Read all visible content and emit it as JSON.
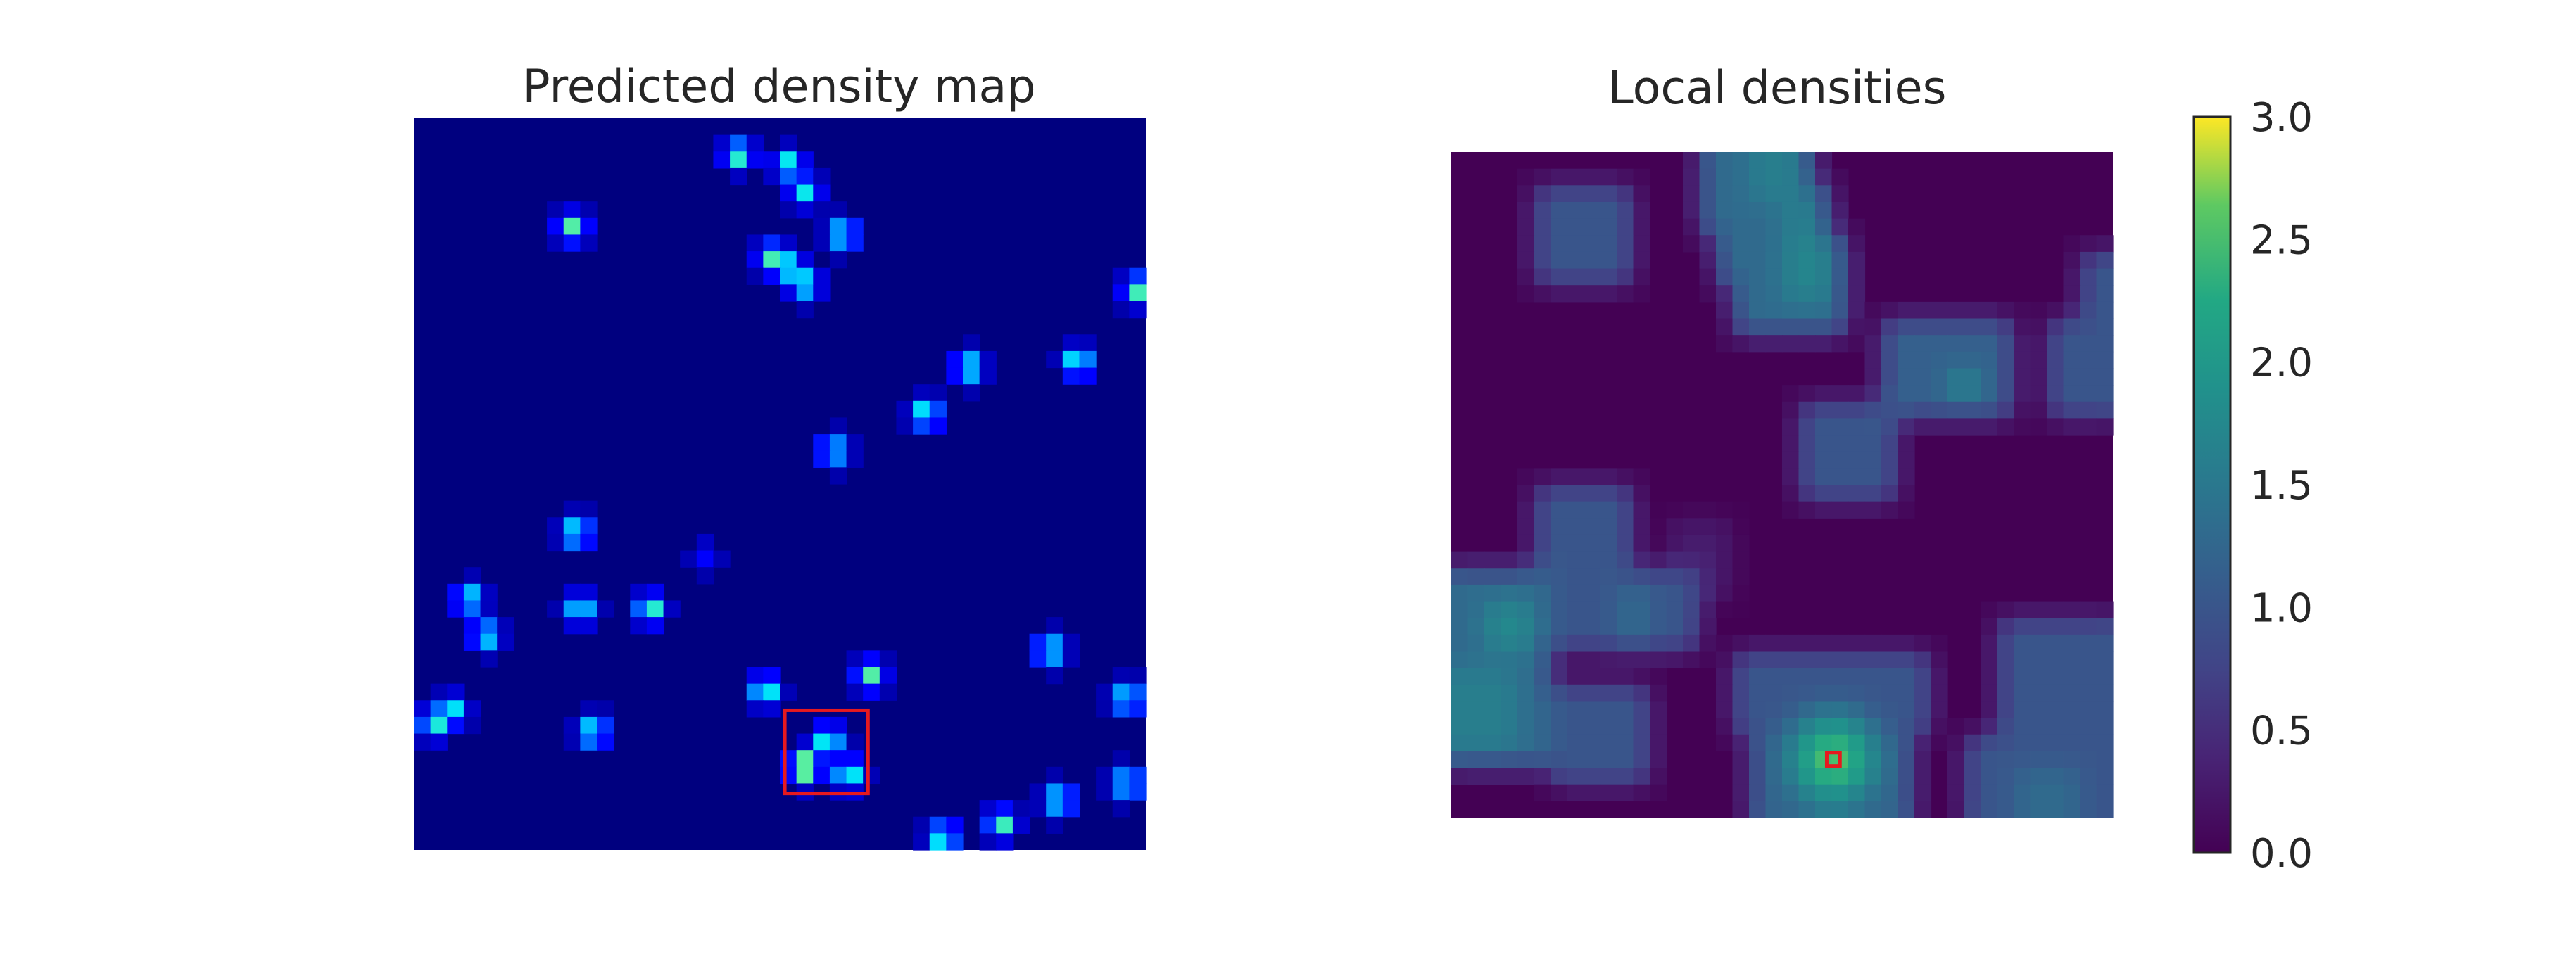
{
  "colors": {
    "jet_background": "#00007f",
    "viridis_background": "#440154",
    "highlight": "#e6191f"
  },
  "chart_data": [
    {
      "type": "heatmap",
      "title": "Predicted density map",
      "colormap": "jet",
      "axes": "off",
      "grid_size": [
        44,
        44
      ],
      "blob_value_range": [
        0,
        1
      ],
      "blobs": [
        {
          "col": 19.5,
          "row": 2.2,
          "peak": 1.0
        },
        {
          "col": 22.5,
          "row": 2.8,
          "peak": 0.9
        },
        {
          "col": 23.5,
          "row": 4.4,
          "peak": 0.8
        },
        {
          "col": 9.5,
          "row": 6.6,
          "peak": 1.0
        },
        {
          "col": 25.8,
          "row": 7.0,
          "peak": 1.0
        },
        {
          "col": 21.5,
          "row": 8.3,
          "peak": 0.9
        },
        {
          "col": 22.5,
          "row": 9.0,
          "peak": 0.8
        },
        {
          "col": 23.5,
          "row": 10.0,
          "peak": 0.9
        },
        {
          "col": 43.5,
          "row": 10.3,
          "peak": 1.0
        },
        {
          "col": 33.3,
          "row": 15.0,
          "peak": 1.0
        },
        {
          "col": 39.9,
          "row": 14.7,
          "peak": 1.0
        },
        {
          "col": 30.8,
          "row": 17.8,
          "peak": 1.0
        },
        {
          "col": 25.2,
          "row": 20.0,
          "peak": 0.9
        },
        {
          "col": 9.8,
          "row": 24.9,
          "peak": 1.0
        },
        {
          "col": 17.5,
          "row": 26.3,
          "peak": 0.2
        },
        {
          "col": 3.3,
          "row": 28.9,
          "peak": 0.9
        },
        {
          "col": 4.3,
          "row": 31.1,
          "peak": 0.9
        },
        {
          "col": 10.0,
          "row": 29.5,
          "peak": 0.9
        },
        {
          "col": 14.2,
          "row": 29.5,
          "peak": 1.0
        },
        {
          "col": 38.2,
          "row": 32.0,
          "peak": 1.0
        },
        {
          "col": 27.4,
          "row": 33.5,
          "peak": 1.0
        },
        {
          "col": 21.1,
          "row": 34.4,
          "peak": 1.0
        },
        {
          "col": 42.9,
          "row": 34.9,
          "peak": 1.0
        },
        {
          "col": 1.2,
          "row": 36.4,
          "peak": 0.9
        },
        {
          "col": 2.3,
          "row": 35.6,
          "peak": 0.8
        },
        {
          "col": 10.8,
          "row": 36.9,
          "peak": 1.0
        },
        {
          "col": 24.9,
          "row": 37.4,
          "peak": 1.0
        },
        {
          "col": 23.4,
          "row": 38.8,
          "peak": 0.8
        },
        {
          "col": 23.5,
          "row": 39.2,
          "peak": 0.9
        },
        {
          "col": 26.1,
          "row": 39.4,
          "peak": 1.0
        },
        {
          "col": 42.9,
          "row": 40.0,
          "peak": 1.0
        },
        {
          "col": 38.8,
          "row": 41.0,
          "peak": 1.0
        },
        {
          "col": 35.3,
          "row": 42.4,
          "peak": 1.0
        },
        {
          "col": 31.8,
          "row": 43.2,
          "peak": 1.0
        }
      ],
      "highlight_box": {
        "col_range": [
          22.3,
          27.3
        ],
        "row_range": [
          35.6,
          40.6
        ]
      }
    },
    {
      "type": "heatmap",
      "title": "Local densities",
      "colormap": "viridis",
      "axes": "off",
      "grid_size": [
        40,
        40
      ],
      "colorbar": {
        "range": [
          0.0,
          3.0
        ],
        "ticks": [
          "0.0",
          "0.5",
          "1.0",
          "1.5",
          "2.0",
          "2.5",
          "3.0"
        ]
      },
      "patches": [
        {
          "c0": 5.5,
          "c1": 10.5,
          "r0": 2.5,
          "r1": 7.5,
          "value": 1.0
        },
        {
          "c0": 15.5,
          "c1": 22.0,
          "r0": 0.0,
          "r1": 4.5,
          "value": 1.3
        },
        {
          "c0": 16.5,
          "c1": 22.5,
          "r0": 2.5,
          "r1": 7.5,
          "value": 1.3
        },
        {
          "c0": 17.5,
          "c1": 23.5,
          "r0": 5.0,
          "r1": 10.5,
          "value": 1.3
        },
        {
          "c0": 18.5,
          "c1": 21.0,
          "r0": 0.0,
          "r1": 2.5,
          "value": 1.6
        },
        {
          "c0": 20.0,
          "c1": 22.0,
          "r0": 2.0,
          "r1": 4.5,
          "value": 1.6
        },
        {
          "c0": 20.0,
          "c1": 23.0,
          "r0": 5.5,
          "r1": 8.5,
          "value": 1.7
        },
        {
          "c0": 26.5,
          "c1": 33.5,
          "r0": 10.5,
          "r1": 16.0,
          "value": 1.15
        },
        {
          "c0": 30.0,
          "c1": 31.5,
          "r0": 13.5,
          "r1": 15.0,
          "value": 1.7
        },
        {
          "c0": 21.5,
          "c1": 27.0,
          "r0": 15.5,
          "r1": 21.0,
          "value": 1.0
        },
        {
          "c0": 36.0,
          "c1": 40.0,
          "r0": 10.5,
          "r1": 15.5,
          "value": 1.0
        },
        {
          "c0": 38.5,
          "c1": 40.0,
          "r0": 6.0,
          "r1": 11.0,
          "value": 1.0
        },
        {
          "c0": 0.0,
          "c1": 5.5,
          "r0": 25.0,
          "r1": 36.5,
          "value": 1.3
        },
        {
          "c0": 0.0,
          "c1": 4.0,
          "r0": 31.0,
          "r1": 36.0,
          "value": 1.6
        },
        {
          "c0": 2.0,
          "c1": 4.5,
          "r0": 27.0,
          "r1": 30.0,
          "value": 1.75
        },
        {
          "c0": 5.5,
          "c1": 11.0,
          "r0": 20.5,
          "r1": 26.0,
          "value": 1.0
        },
        {
          "c0": 6.0,
          "c1": 15.0,
          "r0": 25.0,
          "r1": 30.0,
          "value": 1.0
        },
        {
          "c0": 10.5,
          "c1": 12.0,
          "r0": 26.0,
          "r1": 30.0,
          "value": 1.3
        },
        {
          "c0": 13.5,
          "c1": 16.5,
          "r0": 22.5,
          "r1": 27.0,
          "value": 0.3
        },
        {
          "c0": 6.5,
          "c1": 12.0,
          "r0": 32.5,
          "r1": 37.5,
          "value": 1.0
        },
        {
          "c0": 17.0,
          "c1": 28.5,
          "r0": 30.0,
          "r1": 35.0,
          "value": 1.0
        },
        {
          "c0": 18.0,
          "c1": 27.5,
          "r0": 35.0,
          "r1": 40.0,
          "value": 1.2
        },
        {
          "c0": 22.5,
          "c1": 23.5,
          "r0": 34.5,
          "r1": 38.0,
          "value": 1.6
        },
        {
          "c0": 31.5,
          "c1": 40.0,
          "r0": 35.0,
          "r1": 40.0,
          "value": 1.0
        },
        {
          "c0": 33.0,
          "c1": 40.0,
          "r0": 28.0,
          "r1": 35.5,
          "value": 1.0
        },
        {
          "c0": 34.0,
          "c1": 38.0,
          "r0": 37.0,
          "r1": 40.0,
          "value": 1.3
        }
      ],
      "peaks": [
        {
          "col": 23.1,
          "row": 36.5,
          "peak": 3.0,
          "radius": 3.5
        }
      ],
      "highlight_box": {
        "col_range": [
          22.7,
          23.5
        ],
        "row_range": [
          36.1,
          36.9
        ]
      }
    }
  ]
}
